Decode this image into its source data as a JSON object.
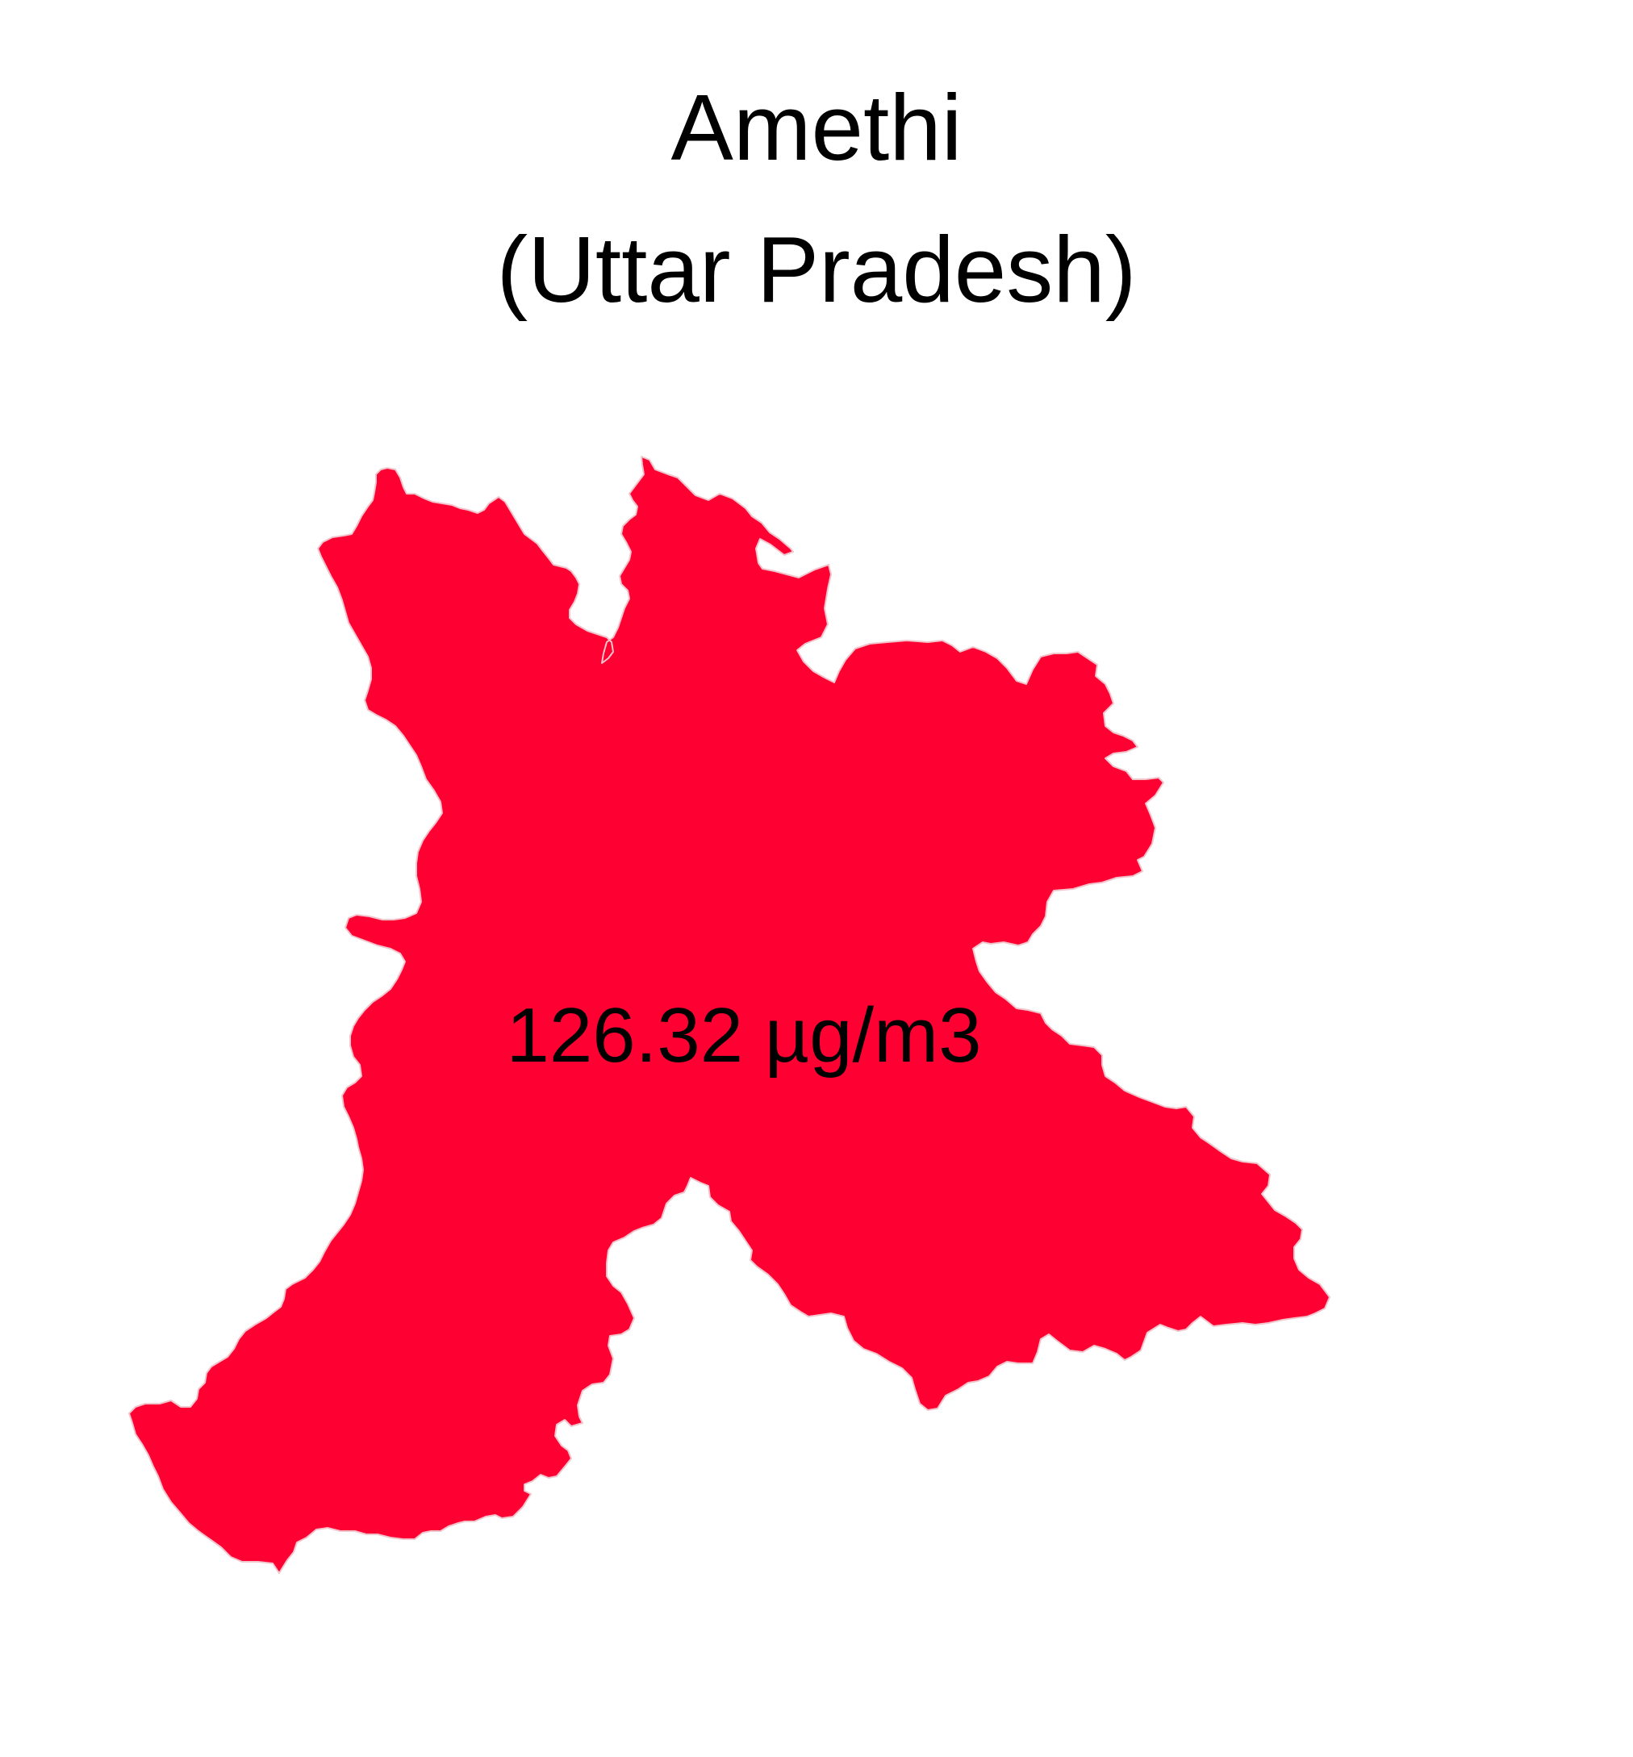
{
  "map": {
    "title_line1": "Amethi",
    "title_line2": "(Uttar Pradesh)",
    "region_name": "Amethi",
    "value": 126.32,
    "value_label": "126.32 µg/m3",
    "fill_color": "#ff0033",
    "border_color": "#f2c4cc",
    "background_color": "#ffffff"
  }
}
